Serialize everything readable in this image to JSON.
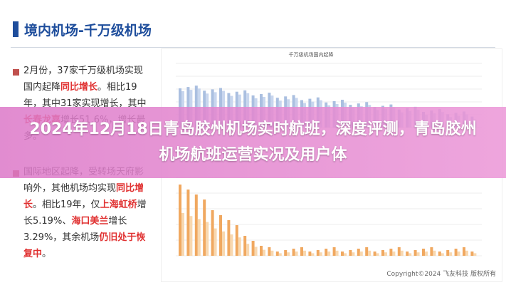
{
  "header": {
    "title": "境内机场-千万级机场"
  },
  "paragraphs": [
    {
      "segments": [
        {
          "text": "2月份，37家千万级机场实现国内起降",
          "highlight": false
        },
        {
          "text": "同比增长",
          "highlight": true
        },
        {
          "text": "。相比19年，其中31家实现增长，其中",
          "highlight": false
        },
        {
          "text": "长春龙嘉",
          "highlight": true
        },
        {
          "text": "增长51.6%，增长最多。",
          "highlight": false
        }
      ]
    },
    {
      "segments": [
        {
          "text": "国际地区起降，受转场天府影响外，其他机场均实现",
          "highlight": false
        },
        {
          "text": "同比增长",
          "highlight": true
        },
        {
          "text": "。相比19年，仅",
          "highlight": false
        },
        {
          "text": "上海虹桥",
          "highlight": true
        },
        {
          "text": "增长5.19%、",
          "highlight": false
        },
        {
          "text": "海口美兰",
          "highlight": true
        },
        {
          "text": "增长3.29%，其余机场",
          "highlight": false
        },
        {
          "text": "仍旧处于恢复中",
          "highlight": true
        },
        {
          "text": "。",
          "highlight": false
        }
      ]
    }
  ],
  "chart_image": {
    "title": "千万级机场国内起降",
    "footer": "Copyright©2024 飞友科技 版权所有"
  },
  "overlay": {
    "title": "2024年12月18日青岛胶州机场实时航班，深度评测，青岛胶州机场航班运营实况及用户体"
  }
}
